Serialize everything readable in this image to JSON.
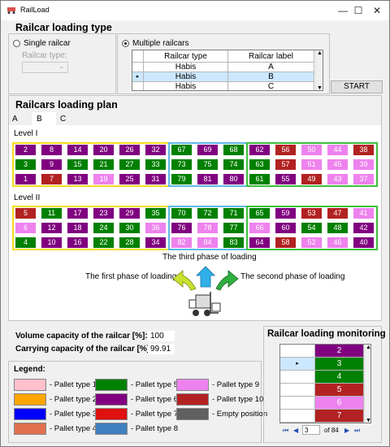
{
  "window": {
    "title": "RailLoad",
    "minimize": "—",
    "maximize": "☐",
    "close": "✕"
  },
  "loading_type": {
    "heading": "Railcar loading type",
    "single_label": "Single railcar",
    "railcar_type_label": "Railcar type:",
    "multiple_label": "Multiple railcars",
    "grid": {
      "headers": [
        "Railcar type",
        "Railcar label"
      ],
      "rows": [
        [
          "Habis",
          "A"
        ],
        [
          "Habis",
          "B"
        ],
        [
          "Habis",
          "C"
        ]
      ]
    },
    "start_button": "START"
  },
  "plan": {
    "heading": "Railcars loading plan",
    "tabs": [
      "A",
      "B",
      "C"
    ],
    "level1": "Level I",
    "level2": "Level II",
    "level1_rows": [
      [
        [
          "2",
          "#800080"
        ],
        [
          "8",
          "#800080"
        ],
        [
          "14",
          "#800080"
        ],
        [
          "20",
          "#800080"
        ],
        [
          "26",
          "#800080"
        ],
        [
          "32",
          "#800080"
        ],
        [
          "67",
          "#008000"
        ],
        [
          "69",
          "#800080"
        ],
        [
          "68",
          "#008000"
        ],
        [
          "62",
          "#800080"
        ],
        [
          "56",
          "#b22222"
        ],
        [
          "50",
          "#ee82ee"
        ],
        [
          "44",
          "#ee82ee"
        ],
        [
          "38",
          "#b22222"
        ]
      ],
      [
        [
          "3",
          "#008000"
        ],
        [
          "9",
          "#800080"
        ],
        [
          "15",
          "#008000"
        ],
        [
          "21",
          "#008000"
        ],
        [
          "27",
          "#008000"
        ],
        [
          "33",
          "#008000"
        ],
        [
          "73",
          "#008000"
        ],
        [
          "75",
          "#008000"
        ],
        [
          "74",
          "#008000"
        ],
        [
          "63",
          "#008000"
        ],
        [
          "57",
          "#b22222"
        ],
        [
          "51",
          "#ee82ee"
        ],
        [
          "45",
          "#ee82ee"
        ],
        [
          "39",
          "#ee82ee"
        ]
      ],
      [
        [
          "1",
          "#800080"
        ],
        [
          "7",
          "#b22222"
        ],
        [
          "13",
          "#800080"
        ],
        [
          "19",
          "#ee82ee"
        ],
        [
          "25",
          "#800080"
        ],
        [
          "31",
          "#800080"
        ],
        [
          "79",
          "#008000"
        ],
        [
          "81",
          "#800080"
        ],
        [
          "80",
          "#800080"
        ],
        [
          "61",
          "#008000"
        ],
        [
          "55",
          "#800080"
        ],
        [
          "49",
          "#b22222"
        ],
        [
          "43",
          "#ee82ee"
        ],
        [
          "37",
          "#ee82ee"
        ]
      ]
    ],
    "level2_rows": [
      [
        [
          "5",
          "#b22222"
        ],
        [
          "11",
          "#008000"
        ],
        [
          "17",
          "#800080"
        ],
        [
          "23",
          "#800080"
        ],
        [
          "29",
          "#800080"
        ],
        [
          "35",
          "#008000"
        ],
        [
          "70",
          "#008000"
        ],
        [
          "72",
          "#008000"
        ],
        [
          "71",
          "#008000"
        ],
        [
          "65",
          "#008000"
        ],
        [
          "59",
          "#800080"
        ],
        [
          "53",
          "#b22222"
        ],
        [
          "47",
          "#b22222"
        ],
        [
          "41",
          "#ee82ee"
        ]
      ],
      [
        [
          "6",
          "#ee82ee"
        ],
        [
          "12",
          "#800080"
        ],
        [
          "18",
          "#800080"
        ],
        [
          "24",
          "#008000"
        ],
        [
          "30",
          "#008000"
        ],
        [
          "36",
          "#ee82ee"
        ],
        [
          "76",
          "#800080"
        ],
        [
          "78",
          "#ee82ee"
        ],
        [
          "77",
          "#008000"
        ],
        [
          "66",
          "#ee82ee"
        ],
        [
          "60",
          "#800080"
        ],
        [
          "54",
          "#008000"
        ],
        [
          "48",
          "#008000"
        ],
        [
          "42",
          "#800080"
        ]
      ],
      [
        [
          "4",
          "#008000"
        ],
        [
          "10",
          "#800080"
        ],
        [
          "16",
          "#800080"
        ],
        [
          "22",
          "#008000"
        ],
        [
          "28",
          "#008000"
        ],
        [
          "34",
          "#800080"
        ],
        [
          "82",
          "#ee82ee"
        ],
        [
          "84",
          "#ee82ee"
        ],
        [
          "83",
          "#008000"
        ],
        [
          "64",
          "#800080"
        ],
        [
          "58",
          "#b22222"
        ],
        [
          "52",
          "#ee82ee"
        ],
        [
          "46",
          "#ee82ee"
        ],
        [
          "40",
          "#800080"
        ]
      ]
    ],
    "third_phase": "The third phase of loading",
    "first_phase": "The first phase of loading",
    "second_phase": "The second phase of loading"
  },
  "capacity": {
    "volume_label": "Volume capacity of the railcar [%]:",
    "volume_value": "100",
    "carrying_label": "Carrying capacity of the railcar [%]:",
    "carrying_value": "99.91"
  },
  "legend": {
    "heading": "Legend:",
    "items": [
      {
        "label": "- Pallet type 1",
        "color": "#ffc0cb"
      },
      {
        "label": "- Pallet type 2",
        "color": "#ffa500"
      },
      {
        "label": "- Pallet type 3",
        "color": "#0000ff"
      },
      {
        "label": "- Pallet type 4",
        "color": "#e07050"
      },
      {
        "label": "- Pallet type 5",
        "color": "#008000"
      },
      {
        "label": "- Pallet type 6",
        "color": "#800080"
      },
      {
        "label": "- Pallet type 7",
        "color": "#e01010"
      },
      {
        "label": "- Pallet type 8",
        "color": "#4080c0"
      },
      {
        "label": "- Pallet type 9",
        "color": "#ee82ee"
      },
      {
        "label": "- Pallet type 10",
        "color": "#b22222"
      },
      {
        "label": "- Empty position",
        "color": "#606060"
      }
    ]
  },
  "monitoring": {
    "heading": "Railcar loading monitoring",
    "rows": [
      [
        "2",
        "#800080"
      ],
      [
        "3",
        "#008000"
      ],
      [
        "4",
        "#008000"
      ],
      [
        "5",
        "#b22222"
      ],
      [
        "6",
        "#ee82ee"
      ],
      [
        "7",
        "#b22222"
      ]
    ],
    "nav_page": "3",
    "nav_total": "of 84"
  }
}
